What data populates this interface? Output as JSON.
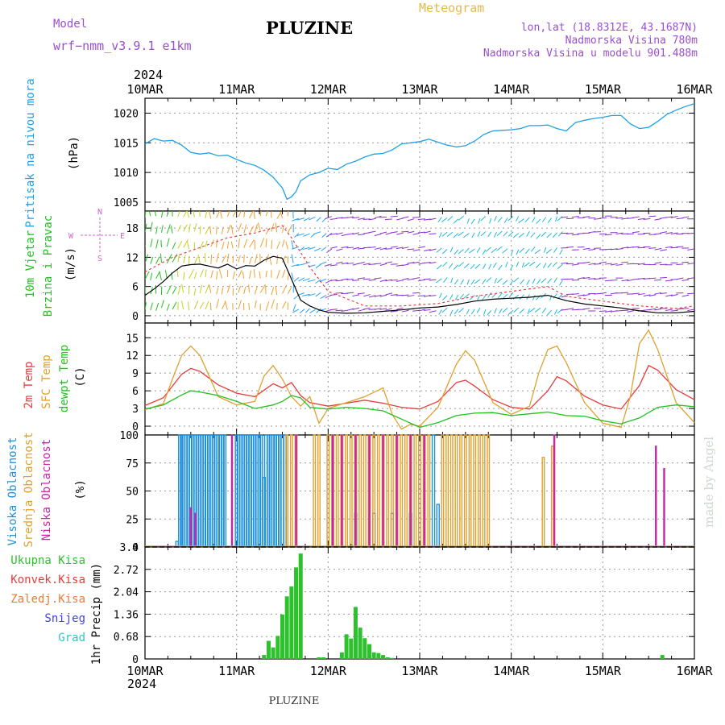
{
  "header": {
    "model_label": "Model",
    "model_name": "wrf−nmm_v3.9.1  e1km",
    "station_title": "PLUZINE",
    "meteogram_label": "Meteogram",
    "lonlat": "lon,lat (18.8312E, 43.1687N)",
    "elevation": "Nadmorska Visina 780m",
    "model_elevation": "Nadmorska Visina u modelu 901.488m",
    "footer_station": "PLUZINE",
    "watermark": "made by Angel",
    "year_top": "2024",
    "year_bottom": "2024"
  },
  "colors": {
    "pressure": "#1fa0e6",
    "temp2m": "#e83c3c",
    "sfc": "#e0a030",
    "dewpt": "#22c022",
    "precip": "#2ec12e",
    "high_cloud": "#1e90dc",
    "mid_cloud": "#e0a030",
    "low_cloud": "#cc22aa",
    "purple_text": "#9a4fd0",
    "gold_text": "#e8b84a"
  },
  "chart_data": [
    {
      "type": "line",
      "name": "pressure-panel",
      "x_ticks": [
        "10MAR",
        "11MAR",
        "12MAR",
        "13MAR",
        "14MAR",
        "15MAR",
        "16MAR"
      ],
      "ylabel_main": "Pritisak na nivou mora",
      "ylabel_unit": "(hPa)",
      "ylim": [
        1003.5,
        1022.5
      ],
      "yticks": [
        "1005",
        "1010",
        "1015",
        "1020"
      ],
      "grid": true,
      "x": [
        0,
        0.1,
        0.2,
        0.3,
        0.4,
        0.5,
        0.6,
        0.7,
        0.8,
        0.9,
        1.0,
        1.1,
        1.2,
        1.3,
        1.4,
        1.5,
        1.55,
        1.6,
        1.65,
        1.7,
        1.8,
        1.9,
        2.0,
        2.1,
        2.2,
        2.3,
        2.4,
        2.5,
        2.6,
        2.7,
        2.8,
        2.9,
        3.0,
        3.1,
        3.2,
        3.3,
        3.4,
        3.5,
        3.6,
        3.7,
        3.8,
        3.9,
        4.0,
        4.1,
        4.2,
        4.3,
        4.4,
        4.5,
        4.6,
        4.7,
        4.8,
        4.9,
        5.0,
        5.1,
        5.2,
        5.3,
        5.4,
        5.5,
        5.6,
        5.7,
        5.8,
        5.9,
        6.0
      ],
      "values": [
        1014.8,
        1015.7,
        1015.3,
        1015.4,
        1014.6,
        1013.4,
        1013.1,
        1013.3,
        1012.8,
        1012.9,
        1012.2,
        1011.6,
        1011.2,
        1010.4,
        1009.2,
        1007.4,
        1005.5,
        1005.9,
        1006.8,
        1008.6,
        1009.6,
        1010.0,
        1010.7,
        1010.5,
        1011.4,
        1011.9,
        1012.6,
        1013.1,
        1013.2,
        1013.8,
        1014.8,
        1015.0,
        1015.2,
        1015.6,
        1015.1,
        1014.6,
        1014.3,
        1014.5,
        1015.3,
        1016.4,
        1017.0,
        1017.1,
        1017.2,
        1017.4,
        1017.9,
        1017.9,
        1018.0,
        1017.4,
        1017.0,
        1018.4,
        1018.8,
        1019.1,
        1019.3,
        1019.6,
        1019.6,
        1018.2,
        1017.4,
        1017.6,
        1018.6,
        1019.8,
        1020.5,
        1021.1,
        1021.6
      ]
    },
    {
      "type": "line",
      "name": "wind-panel",
      "ylabel_main": "10m Vjetar",
      "ylabel_main2": "Brzina i Pravac",
      "ylabel_unit": "(m/s)",
      "compass": [
        "N",
        "E",
        "S",
        "W"
      ],
      "ylim": [
        -1.5,
        21.5
      ],
      "yticks": [
        "0",
        "6",
        "12",
        "18"
      ],
      "grid": true,
      "x": [
        0,
        0.1,
        0.2,
        0.3,
        0.4,
        0.5,
        0.6,
        0.7,
        0.8,
        0.9,
        1.0,
        1.1,
        1.2,
        1.3,
        1.4,
        1.5,
        1.6,
        1.7,
        1.8,
        1.9,
        2.0,
        2.2,
        2.4,
        2.6,
        2.8,
        3.0,
        3.2,
        3.4,
        3.6,
        3.8,
        4.0,
        4.2,
        4.4,
        4.6,
        4.8,
        5.0,
        5.2,
        5.4,
        5.6,
        5.8,
        6.0
      ],
      "values": [
        4.2,
        5.5,
        7.0,
        8.8,
        10.2,
        10.5,
        10.6,
        10.2,
        9.8,
        10.6,
        9.6,
        10.3,
        10.2,
        11.4,
        12.2,
        11.8,
        7.5,
        3.2,
        2.0,
        1.2,
        0.7,
        0.5,
        0.6,
        0.9,
        1.2,
        1.6,
        1.8,
        2.3,
        3.0,
        3.4,
        3.6,
        3.8,
        4.2,
        3.1,
        2.4,
        2.0,
        1.6,
        1.0,
        0.6,
        0.6,
        0.9
      ],
      "gust_x": [
        0,
        0.3,
        0.6,
        0.9,
        1.2,
        1.5,
        1.6,
        1.8,
        2.0,
        2.4,
        2.8,
        3.2,
        3.6,
        4.0,
        4.4,
        4.6,
        5.0,
        5.4,
        5.8,
        6.0
      ],
      "gust_values": [
        9,
        12,
        14,
        16,
        17,
        18.5,
        16,
        10,
        5,
        2,
        2,
        2.5,
        4,
        5,
        6,
        4,
        3,
        2,
        1.5,
        2
      ],
      "arrow_hues": [
        "green",
        "yellow",
        "orange",
        "cyan",
        "purple"
      ]
    },
    {
      "type": "line",
      "name": "temperature-panel",
      "ylabel_main": "2m Temp",
      "ylabel_main2": "SFC Temp",
      "ylabel_main3": "dewpt Temp",
      "ylabel_unit": "(C)",
      "ylim": [
        -1.5,
        17.5
      ],
      "yticks": [
        "0",
        "3",
        "6",
        "9",
        "12",
        "15"
      ],
      "grid": true,
      "series": [
        {
          "name": "2m Temp",
          "x": [
            0,
            0.2,
            0.4,
            0.5,
            0.6,
            0.8,
            1.0,
            1.2,
            1.4,
            1.5,
            1.6,
            1.7,
            1.8,
            2.0,
            2.2,
            2.4,
            2.6,
            2.8,
            3.0,
            3.2,
            3.4,
            3.5,
            3.6,
            3.8,
            4.0,
            4.2,
            4.4,
            4.5,
            4.6,
            4.8,
            5.0,
            5.2,
            5.4,
            5.5,
            5.6,
            5.8,
            6.0
          ],
          "values": [
            3.5,
            4.8,
            8.8,
            9.8,
            9.3,
            7.0,
            5.6,
            5.0,
            7.2,
            6.5,
            7.4,
            5.2,
            4.0,
            3.4,
            3.9,
            4.4,
            3.9,
            3.2,
            2.9,
            4.2,
            7.4,
            7.8,
            6.8,
            4.5,
            3.2,
            2.9,
            6.0,
            8.4,
            7.7,
            5.1,
            3.6,
            2.9,
            6.9,
            10.3,
            9.5,
            6.2,
            4.5
          ]
        },
        {
          "name": "SFC Temp",
          "x": [
            0,
            0.2,
            0.3,
            0.4,
            0.5,
            0.6,
            0.8,
            1.0,
            1.2,
            1.3,
            1.4,
            1.5,
            1.6,
            1.7,
            1.8,
            1.9,
            2.0,
            2.2,
            2.4,
            2.6,
            2.7,
            2.8,
            2.9,
            3.0,
            3.2,
            3.4,
            3.5,
            3.6,
            3.8,
            4.0,
            4.2,
            4.3,
            4.4,
            4.5,
            4.6,
            4.8,
            5.0,
            5.2,
            5.3,
            5.4,
            5.5,
            5.6,
            5.8,
            6.0
          ],
          "values": [
            2.8,
            3.8,
            8.0,
            12.0,
            13.6,
            12.0,
            5.0,
            3.6,
            4.2,
            8.5,
            10.3,
            8.0,
            5.0,
            3.4,
            5.0,
            0.5,
            3.0,
            4.0,
            5.0,
            6.5,
            2.0,
            -0.5,
            0.3,
            0.0,
            3.2,
            10.5,
            12.8,
            11.2,
            4.0,
            2.0,
            3.4,
            9.0,
            13.0,
            13.6,
            10.8,
            4.0,
            0.5,
            -0.2,
            5.0,
            14.0,
            16.3,
            13.0,
            4.0,
            0.6
          ]
        },
        {
          "name": "dewpt Temp",
          "x": [
            0,
            0.2,
            0.4,
            0.5,
            0.6,
            0.8,
            1.0,
            1.2,
            1.4,
            1.5,
            1.6,
            1.7,
            1.8,
            2.0,
            2.2,
            2.4,
            2.6,
            2.8,
            3.0,
            3.2,
            3.4,
            3.6,
            3.8,
            4.0,
            4.2,
            4.4,
            4.6,
            4.8,
            5.0,
            5.2,
            5.4,
            5.6,
            5.8,
            6.0
          ],
          "values": [
            2.9,
            3.6,
            5.3,
            6.0,
            5.8,
            5.2,
            4.2,
            3.0,
            3.6,
            4.2,
            5.2,
            4.8,
            3.2,
            2.9,
            3.2,
            3.0,
            2.6,
            1.2,
            -0.2,
            0.6,
            1.8,
            2.2,
            2.3,
            1.8,
            2.1,
            2.4,
            1.8,
            1.7,
            0.9,
            0.4,
            1.4,
            3.2,
            3.6,
            3.3
          ]
        }
      ]
    },
    {
      "type": "bar",
      "name": "cloud-panel",
      "ylabel_main": "Visoka Oblacnost",
      "ylabel_main2": "Srednja Oblacnost",
      "ylabel_main3": "Niska Oblacnost",
      "ylabel_unit": "(%)",
      "ylim": [
        0,
        100
      ],
      "yticks": [
        "0",
        "25",
        "50",
        "75",
        "100"
      ],
      "grid": true,
      "high_x": [
        0.35,
        0.38,
        0.4,
        0.42,
        0.45,
        0.47,
        0.5,
        0.52,
        0.55,
        0.57,
        0.6,
        0.62,
        0.65,
        0.67,
        0.7,
        0.72,
        0.75,
        0.77,
        0.8,
        0.82,
        0.85,
        0.87,
        1.0,
        1.02,
        1.05,
        1.07,
        1.1,
        1.12,
        1.15,
        1.17,
        1.2,
        1.22,
        1.25,
        1.27,
        1.3,
        1.32,
        1.35,
        1.37,
        1.4,
        1.42,
        1.45,
        1.47,
        1.5,
        1.53,
        2.3,
        2.5,
        2.7,
        2.9,
        3.15,
        3.2
      ],
      "high_values": [
        5,
        100,
        100,
        100,
        100,
        100,
        100,
        100,
        100,
        100,
        100,
        100,
        100,
        100,
        100,
        100,
        100,
        100,
        100,
        100,
        100,
        100,
        100,
        100,
        100,
        100,
        100,
        100,
        100,
        100,
        100,
        100,
        100,
        100,
        62,
        100,
        100,
        100,
        100,
        100,
        100,
        100,
        100,
        100,
        30,
        30,
        30,
        30,
        100,
        38
      ],
      "mid_x": [
        1.55,
        1.6,
        1.65,
        1.85,
        1.9,
        2.0,
        2.05,
        2.1,
        2.15,
        2.2,
        2.25,
        2.3,
        2.35,
        2.4,
        2.45,
        2.5,
        2.55,
        2.6,
        2.65,
        2.7,
        2.75,
        2.8,
        2.85,
        2.9,
        2.95,
        3.0,
        3.05,
        3.1,
        3.25,
        3.3,
        3.35,
        3.4,
        3.45,
        3.5,
        3.55,
        3.6,
        3.65,
        3.7,
        3.75,
        4.35,
        4.45
      ],
      "mid_values": [
        100,
        100,
        100,
        100,
        100,
        100,
        100,
        100,
        100,
        100,
        100,
        100,
        100,
        100,
        100,
        100,
        100,
        100,
        100,
        100,
        100,
        100,
        100,
        100,
        100,
        100,
        100,
        100,
        100,
        100,
        100,
        100,
        100,
        100,
        100,
        100,
        100,
        100,
        100,
        80,
        90
      ],
      "low_x": [
        0.5,
        0.55,
        0.95,
        1.65,
        2.05,
        2.15,
        2.3,
        2.45,
        2.6,
        2.75,
        2.9,
        3.05,
        4.47,
        5.58,
        5.67
      ],
      "low_values": [
        35,
        30,
        100,
        100,
        100,
        100,
        100,
        100,
        100,
        100,
        100,
        100,
        100,
        90,
        70
      ]
    },
    {
      "type": "bar",
      "name": "precip-panel",
      "ylabel_main": "1hr Precip (mm)",
      "legend": [
        "Ukupna Kisa",
        "Konvek.Kisa",
        "Zaledj.Kisa",
        "Snijeg",
        "Grad"
      ],
      "legend_colors": [
        "#2ec12e",
        "#e83c3c",
        "#f07a30",
        "#4444dd",
        "#2ec8c0"
      ],
      "ylim": [
        0,
        3.4
      ],
      "yticks": [
        "0",
        "0.68",
        "1.36",
        "2.04",
        "2.72",
        "3.4"
      ],
      "grid": true,
      "x": [
        1.3,
        1.35,
        1.4,
        1.45,
        1.5,
        1.55,
        1.6,
        1.65,
        1.7,
        1.9,
        1.95,
        2.15,
        2.2,
        2.25,
        2.3,
        2.35,
        2.4,
        2.45,
        2.5,
        2.55,
        2.6,
        2.65,
        2.7,
        5.65
      ],
      "values": [
        0.12,
        0.55,
        0.35,
        0.7,
        1.35,
        1.9,
        2.2,
        2.78,
        3.2,
        0.05,
        0.05,
        0.2,
        0.75,
        0.62,
        1.58,
        0.95,
        0.63,
        0.45,
        0.2,
        0.18,
        0.12,
        0.05,
        0.03,
        0.12
      ]
    }
  ]
}
